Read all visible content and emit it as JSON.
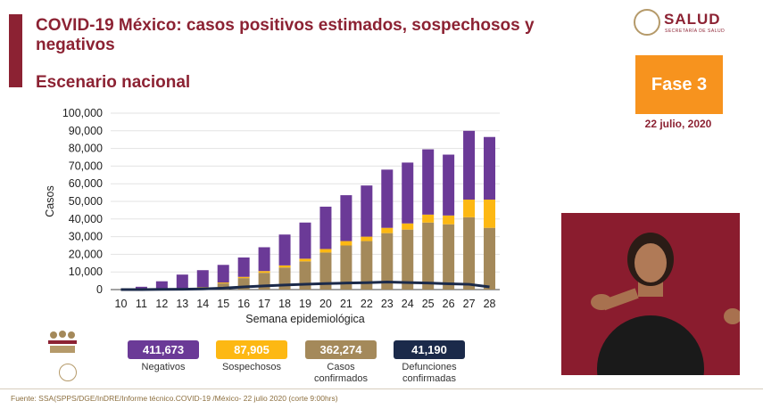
{
  "header": {
    "title": "COVID-19 México: casos positivos estimados, sospechosos y negativos",
    "subtitle": "Escenario nacional"
  },
  "logo": {
    "name": "SALUD",
    "sub": "SECRETARÍA DE SALUD"
  },
  "phase": {
    "label": "Fase 3",
    "color": "#f7931e"
  },
  "date": "22 julio, 2020",
  "stats": [
    {
      "value": "411,673",
      "label": "Negativos",
      "color": "#6b3a97"
    },
    {
      "value": "87,905",
      "label": "Sospechosos",
      "color": "#fdb813"
    },
    {
      "value": "362,274",
      "label": "Casos confirmados",
      "color": "#a4895a"
    },
    {
      "value": "41,190",
      "label": "Defunciones confirmadas",
      "color": "#1b2a4a"
    }
  ],
  "footer": "Fuente: SSA(SPPS/DGE/InDRE/Informe técnico.COVID-19 /México- 22 julio 2020 (corte 9:00hrs)",
  "chart_data": {
    "type": "bar",
    "stacked": true,
    "categories": [
      "10",
      "11",
      "12",
      "13",
      "14",
      "15",
      "16",
      "17",
      "18",
      "19",
      "20",
      "21",
      "22",
      "23",
      "24",
      "25",
      "26",
      "27",
      "28"
    ],
    "xlabel": "Semana epidemiológica",
    "ylabel": "Casos",
    "ylim": [
      0,
      100000
    ],
    "yticks": [
      "0",
      "10,000",
      "20,000",
      "30,000",
      "40,000",
      "50,000",
      "60,000",
      "70,000",
      "80,000",
      "90,000",
      "100,000"
    ],
    "series": [
      {
        "name": "Casos confirmados",
        "color": "#a4895a",
        "values": [
          0,
          100,
          200,
          500,
          1500,
          3500,
          6500,
          9500,
          12500,
          16000,
          21000,
          25000,
          27500,
          32000,
          34000,
          38000,
          37000,
          41000,
          35000
        ]
      },
      {
        "name": "Sospechosos",
        "color": "#fdb813",
        "values": [
          0,
          0,
          0,
          0,
          0,
          500,
          700,
          1000,
          1200,
          1500,
          2000,
          2500,
          2500,
          3000,
          3500,
          4500,
          5000,
          10000,
          16000
        ]
      },
      {
        "name": "Negativos",
        "color": "#6b3a97",
        "values": [
          0,
          1500,
          4500,
          8000,
          9500,
          10000,
          11000,
          13500,
          17500,
          20500,
          24000,
          26000,
          29000,
          33000,
          34500,
          37000,
          34500,
          39000,
          35500
        ]
      },
      {
        "name": "Defunciones confirmadas",
        "type": "line",
        "color": "#1b2a4a",
        "values": [
          0,
          0,
          100,
          200,
          400,
          800,
          1500,
          2100,
          2600,
          3000,
          3400,
          3700,
          3900,
          4300,
          4000,
          3700,
          3300,
          3000,
          1500
        ]
      }
    ]
  }
}
